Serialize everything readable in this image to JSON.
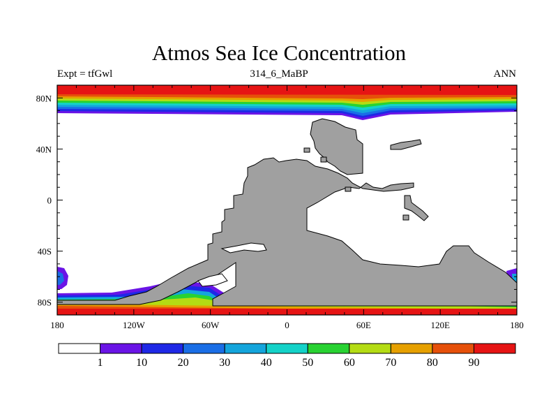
{
  "title": "Atmos Sea Ice Concentration",
  "subtitle_left": "Expt = tfGwl",
  "subtitle_center": "314_6_MaBP",
  "subtitle_right": "ANN",
  "lat_ticks": [
    {
      "label": "80N",
      "value": 80
    },
    {
      "label": "40N",
      "value": 40
    },
    {
      "label": "0",
      "value": 0
    },
    {
      "label": "40S",
      "value": -40
    },
    {
      "label": "80S",
      "value": -80
    }
  ],
  "lon_ticks": [
    {
      "label": "180",
      "value": -180
    },
    {
      "label": "120W",
      "value": -120
    },
    {
      "label": "60W",
      "value": -60
    },
    {
      "label": "0",
      "value": 0
    },
    {
      "label": "60E",
      "value": 60
    },
    {
      "label": "120E",
      "value": 120
    },
    {
      "label": "180",
      "value": 180
    }
  ],
  "colorbar": {
    "colors": [
      "#ffffff",
      "#6a14e6",
      "#1e28e6",
      "#1a6ee6",
      "#14a5dc",
      "#14d2c8",
      "#28d232",
      "#b4dc14",
      "#e6a000",
      "#e6500a",
      "#e61414"
    ],
    "labels": [
      "1",
      "10",
      "20",
      "30",
      "40",
      "50",
      "60",
      "70",
      "80",
      "90"
    ]
  },
  "land_color": "#a0a0a0"
}
